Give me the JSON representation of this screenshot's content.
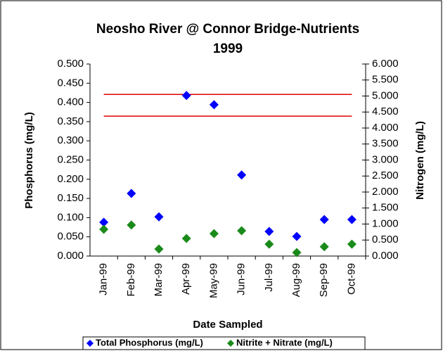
{
  "chart_data": {
    "type": "scatter",
    "title": "Neosho River @ Connor Bridge-Nutrients",
    "subtitle": "1999",
    "xlabel": "Date Sampled",
    "ylabel": "Phosphorus (mg/L)",
    "y2label": "Nitrogen (mg/L)",
    "categories": [
      "Jan-99",
      "Feb-99",
      "Mar-99",
      "Apr-99",
      "May-99",
      "Jun-99",
      "Jul-99",
      "Aug-99",
      "Sep-99",
      "Oct-99"
    ],
    "series": [
      {
        "name": "Total Phosphorus (mg/L)",
        "color": "#0000ff",
        "axis": "y",
        "values": [
          0.088,
          0.163,
          0.102,
          0.418,
          0.394,
          0.211,
          0.064,
          0.051,
          0.095,
          0.095
        ]
      },
      {
        "name": "Nitrite + Nitrate (mg/L)",
        "color": "#1a8a1a",
        "axis": "y2",
        "values": [
          0.835,
          0.97,
          0.22,
          0.55,
          0.7,
          0.79,
          0.37,
          0.11,
          0.29,
          0.37
        ]
      }
    ],
    "reference_lines": [
      {
        "value": 5.05,
        "axis": "y2",
        "color": "#e00000"
      },
      {
        "value": 4.37,
        "axis": "y2",
        "color": "#e00000"
      }
    ],
    "ylim": [
      0,
      0.5
    ],
    "yticks": [
      {
        "value": 0,
        "label": "0.000"
      },
      {
        "value": 0.05,
        "label": "0.050"
      },
      {
        "value": 0.1,
        "label": "0.100"
      },
      {
        "value": 0.15,
        "label": "0.150"
      },
      {
        "value": 0.2,
        "label": "0.200"
      },
      {
        "value": 0.25,
        "label": "0.250"
      },
      {
        "value": 0.3,
        "label": "0.300"
      },
      {
        "value": 0.35,
        "label": "0.350"
      },
      {
        "value": 0.4,
        "label": "0.400"
      },
      {
        "value": 0.45,
        "label": "0.450"
      },
      {
        "value": 0.5,
        "label": "0.500"
      }
    ],
    "y2lim": [
      0,
      6
    ],
    "y2ticks": [
      {
        "value": 0,
        "label": "0.000"
      },
      {
        "value": 0.5,
        "label": "0.500"
      },
      {
        "value": 1,
        "label": "1.000"
      },
      {
        "value": 1.5,
        "label": "1.500"
      },
      {
        "value": 2,
        "label": "2.000"
      },
      {
        "value": 2.5,
        "label": "2.500"
      },
      {
        "value": 3,
        "label": "3.000"
      },
      {
        "value": 3.5,
        "label": "3.500"
      },
      {
        "value": 4,
        "label": "4.000"
      },
      {
        "value": 4.5,
        "label": "4.500"
      },
      {
        "value": 5,
        "label": "5.000"
      },
      {
        "value": 5.5,
        "label": "5.500"
      },
      {
        "value": 6,
        "label": "6.000"
      }
    ],
    "legend": "bottom",
    "grid": false
  }
}
